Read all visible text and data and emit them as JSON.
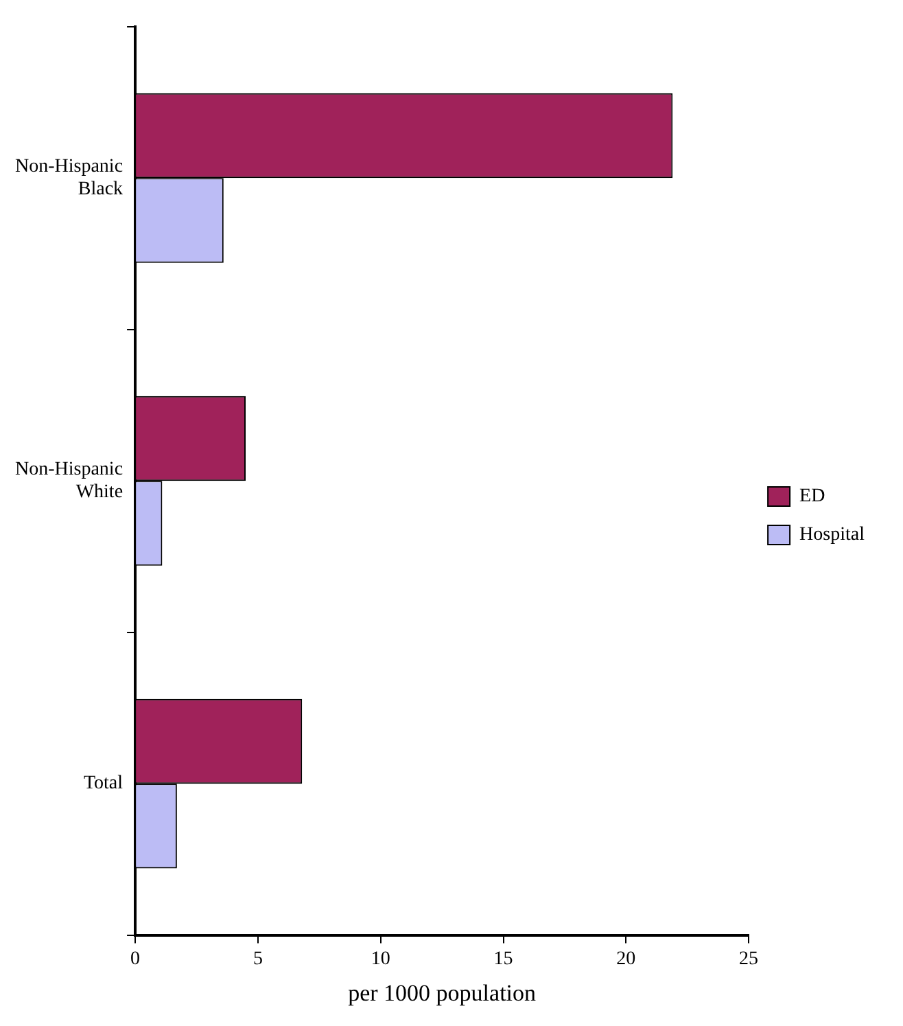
{
  "chart_data": {
    "type": "bar",
    "orientation": "horizontal",
    "xlabel": "per 1000 population",
    "categories": [
      "Non-Hispanic\nBlack",
      "Non-Hispanic\nWhite",
      "Total"
    ],
    "series": [
      {
        "name": "ED",
        "color": "#a0225a",
        "values": [
          21.9,
          4.5,
          6.8
        ]
      },
      {
        "name": "Hospital",
        "color": "#bcbcf5",
        "values": [
          3.6,
          1.1,
          1.7
        ]
      }
    ],
    "xlim": [
      0,
      25
    ],
    "xticks": [
      0,
      5,
      10,
      15,
      20,
      25
    ],
    "grid": false,
    "legend": "right"
  }
}
